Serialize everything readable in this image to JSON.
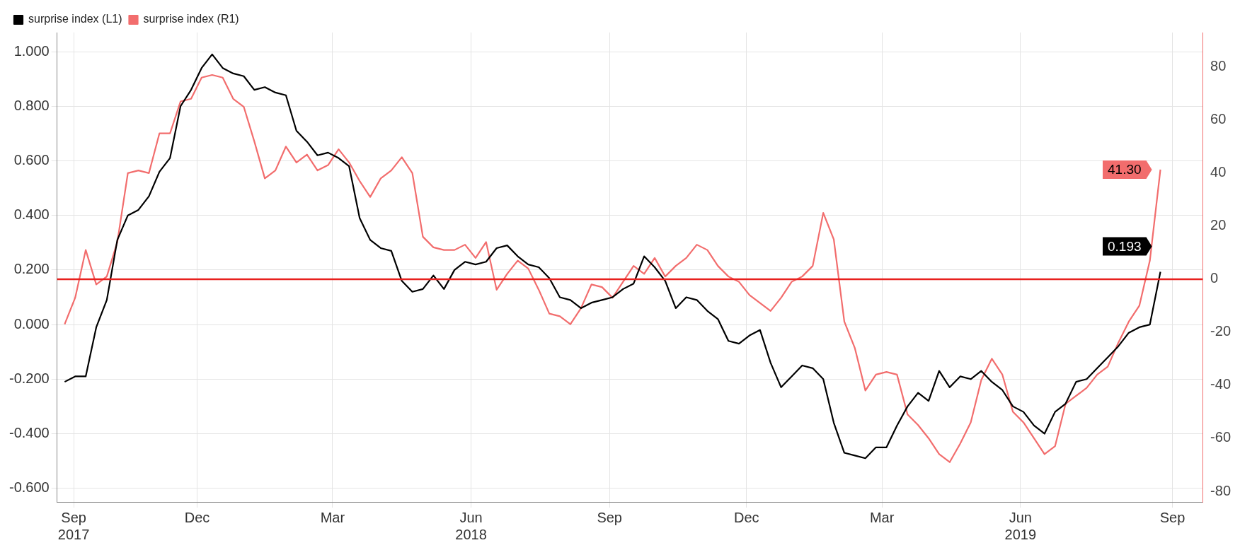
{
  "chart_data": {
    "type": "line",
    "x": [
      "2017-09-04",
      "2017-09-11",
      "2017-09-18",
      "2017-09-25",
      "2017-10-02",
      "2017-10-09",
      "2017-10-16",
      "2017-10-23",
      "2017-10-30",
      "2017-11-06",
      "2017-11-13",
      "2017-11-20",
      "2017-11-27",
      "2017-12-04",
      "2017-12-11",
      "2017-12-18",
      "2017-12-25",
      "2018-01-01",
      "2018-01-08",
      "2018-01-15",
      "2018-01-22",
      "2018-01-29",
      "2018-02-05",
      "2018-02-12",
      "2018-02-19",
      "2018-02-26",
      "2018-03-05",
      "2018-03-12",
      "2018-03-19",
      "2018-03-26",
      "2018-04-02",
      "2018-04-09",
      "2018-04-16",
      "2018-04-23",
      "2018-04-30",
      "2018-05-07",
      "2018-05-14",
      "2018-05-21",
      "2018-05-28",
      "2018-06-04",
      "2018-06-11",
      "2018-06-18",
      "2018-06-25",
      "2018-07-02",
      "2018-07-09",
      "2018-07-16",
      "2018-07-23",
      "2018-07-30",
      "2018-08-06",
      "2018-08-13",
      "2018-08-20",
      "2018-08-27",
      "2018-09-03",
      "2018-09-10",
      "2018-09-17",
      "2018-09-24",
      "2018-10-01",
      "2018-10-08",
      "2018-10-15",
      "2018-10-22",
      "2018-10-29",
      "2018-11-05",
      "2018-11-12",
      "2018-11-19",
      "2018-11-26",
      "2018-12-03",
      "2018-12-10",
      "2018-12-17",
      "2018-12-24",
      "2018-12-31",
      "2019-01-07",
      "2019-01-14",
      "2019-01-21",
      "2019-01-28",
      "2019-02-04",
      "2019-02-11",
      "2019-02-18",
      "2019-02-25",
      "2019-03-04",
      "2019-03-11",
      "2019-03-18",
      "2019-03-25",
      "2019-04-01",
      "2019-04-08",
      "2019-04-15",
      "2019-04-22",
      "2019-04-29",
      "2019-05-06",
      "2019-05-13",
      "2019-05-20",
      "2019-05-27",
      "2019-06-03",
      "2019-06-10",
      "2019-06-17",
      "2019-06-24",
      "2019-07-01",
      "2019-07-08",
      "2019-07-15",
      "2019-07-22",
      "2019-07-29",
      "2019-08-05",
      "2019-08-12",
      "2019-08-19",
      "2019-08-26",
      "2019-09-02"
    ],
    "series": [
      {
        "name": "surprise index (L1)",
        "color": "#000000",
        "axis": "y",
        "values": [
          -0.21,
          -0.19,
          -0.19,
          -0.01,
          0.09,
          0.31,
          0.4,
          0.42,
          0.47,
          0.56,
          0.61,
          0.8,
          0.86,
          0.94,
          0.99,
          0.94,
          0.92,
          0.91,
          0.86,
          0.87,
          0.85,
          0.84,
          0.71,
          0.67,
          0.62,
          0.63,
          0.61,
          0.58,
          0.39,
          0.31,
          0.28,
          0.27,
          0.16,
          0.12,
          0.13,
          0.18,
          0.13,
          0.2,
          0.23,
          0.22,
          0.23,
          0.28,
          0.29,
          0.25,
          0.22,
          0.21,
          0.17,
          0.1,
          0.09,
          0.06,
          0.08,
          0.09,
          0.1,
          0.13,
          0.15,
          0.25,
          0.21,
          0.16,
          0.06,
          0.1,
          0.09,
          0.05,
          0.02,
          -0.06,
          -0.07,
          -0.04,
          -0.02,
          -0.14,
          -0.23,
          -0.19,
          -0.15,
          -0.16,
          -0.2,
          -0.36,
          -0.47,
          -0.48,
          -0.49,
          -0.45,
          -0.45,
          -0.37,
          -0.3,
          -0.25,
          -0.28,
          -0.17,
          -0.23,
          -0.19,
          -0.2,
          -0.17,
          -0.21,
          -0.24,
          -0.3,
          -0.32,
          -0.37,
          -0.4,
          -0.32,
          -0.29,
          -0.21,
          -0.2,
          -0.16,
          -0.12,
          -0.08,
          -0.03,
          -0.01,
          0.0,
          0.193
        ],
        "value_labels": [
          null,
          null,
          null,
          null,
          null,
          null,
          null,
          null,
          null,
          null,
          null,
          null,
          null,
          null,
          null,
          null,
          null,
          null,
          null,
          null,
          null,
          null,
          null,
          null,
          null,
          null,
          null,
          null,
          null,
          null,
          null,
          null,
          null,
          null,
          null,
          null,
          null,
          null,
          null,
          null,
          null,
          null,
          null,
          null,
          null,
          null,
          null,
          null,
          null,
          null,
          null,
          null,
          null,
          null,
          null,
          null,
          null,
          null,
          null,
          null,
          null,
          null,
          null,
          null,
          null,
          null,
          null,
          null,
          null,
          null,
          null,
          null,
          null,
          null,
          null,
          null,
          null,
          null,
          null,
          null,
          null,
          null,
          null,
          null,
          null,
          null,
          null,
          null,
          null,
          null,
          null,
          null,
          null,
          null,
          null,
          null,
          null,
          null,
          null,
          null,
          null,
          null,
          null,
          null,
          "0.193"
        ]
      },
      {
        "name": "surprise index (R1)",
        "color": "#f26d6d",
        "axis": "y2",
        "values": [
          -17,
          -7,
          11,
          -2,
          1,
          14,
          40,
          41,
          40,
          55,
          55,
          67,
          68,
          76,
          77,
          76,
          68,
          65,
          52,
          38,
          41,
          50,
          44,
          47,
          41,
          43,
          49,
          44,
          37,
          31,
          38,
          41,
          46,
          40,
          16,
          12,
          11,
          11,
          13,
          8,
          14,
          -4,
          2,
          7,
          4,
          -4,
          -13,
          -14,
          -17,
          -11,
          -2,
          -3,
          -7,
          -1,
          5,
          2,
          8,
          1,
          5,
          8,
          13,
          11,
          5,
          1,
          -1,
          -6,
          -9,
          -12,
          -7,
          -1,
          1,
          5,
          25,
          15,
          -16,
          -26,
          -42,
          -36,
          -35,
          -36,
          -51,
          -55,
          -60,
          -66,
          -69,
          -62,
          -54,
          -38,
          -30,
          -36,
          -50,
          -54,
          -60,
          -66,
          -63,
          -47,
          -44,
          -41,
          -36,
          -33,
          -24,
          -16,
          -10,
          7,
          41.3
        ],
        "value_labels": [
          null,
          null,
          null,
          null,
          null,
          null,
          null,
          null,
          null,
          null,
          null,
          null,
          null,
          null,
          null,
          null,
          null,
          null,
          null,
          null,
          null,
          null,
          null,
          null,
          null,
          null,
          null,
          null,
          null,
          null,
          null,
          null,
          null,
          null,
          null,
          null,
          null,
          null,
          null,
          null,
          null,
          null,
          null,
          null,
          null,
          null,
          null,
          null,
          null,
          null,
          null,
          null,
          null,
          null,
          null,
          null,
          null,
          null,
          null,
          null,
          null,
          null,
          null,
          null,
          null,
          null,
          null,
          null,
          null,
          null,
          null,
          null,
          null,
          null,
          null,
          null,
          null,
          null,
          null,
          null,
          null,
          null,
          null,
          null,
          null,
          null,
          null,
          null,
          null,
          null,
          null,
          null,
          null,
          null,
          null,
          null,
          null,
          null,
          null,
          null,
          null,
          null,
          null,
          null,
          "41.30"
        ]
      }
    ],
    "xlim": [
      "2017-08-30",
      "2019-09-30"
    ],
    "xticks": [
      {
        "value": "2017-09-10",
        "label": "Sep\n2017"
      },
      {
        "value": "2017-12-01",
        "label": "Dec"
      },
      {
        "value": "2018-03-01",
        "label": "Mar"
      },
      {
        "value": "2018-06-01",
        "label": "Jun\n2018"
      },
      {
        "value": "2018-09-01",
        "label": "Sep"
      },
      {
        "value": "2018-12-01",
        "label": "Dec"
      },
      {
        "value": "2019-03-01",
        "label": "Mar"
      },
      {
        "value": "2019-06-01",
        "label": "Jun\n2019"
      },
      {
        "value": "2019-09-10",
        "label": "Sep"
      }
    ],
    "ylim": [
      -0.65,
      1.07
    ],
    "yticks": [
      {
        "value": -0.6,
        "label": "-0.600"
      },
      {
        "value": -0.4,
        "label": "-0.400"
      },
      {
        "value": -0.2,
        "label": "-0.200"
      },
      {
        "value": 0,
        "label": "0.000"
      },
      {
        "value": 0.2,
        "label": "0.200"
      },
      {
        "value": 0.4,
        "label": "0.400"
      },
      {
        "value": 0.6,
        "label": "0.600"
      },
      {
        "value": 0.8,
        "label": "0.800"
      },
      {
        "value": 1,
        "label": "1.000"
      }
    ],
    "y2lim": [
      -84,
      93
    ],
    "y2ticks": [
      -80,
      -60,
      -40,
      -20,
      0,
      20,
      40,
      60,
      80
    ],
    "ref_lines": [
      {
        "axis": "y2",
        "value": 0,
        "color": "#e8201e",
        "line_style": "solid"
      }
    ],
    "grid": true,
    "legend": "top left",
    "marker": "none",
    "line_style": "solid"
  }
}
